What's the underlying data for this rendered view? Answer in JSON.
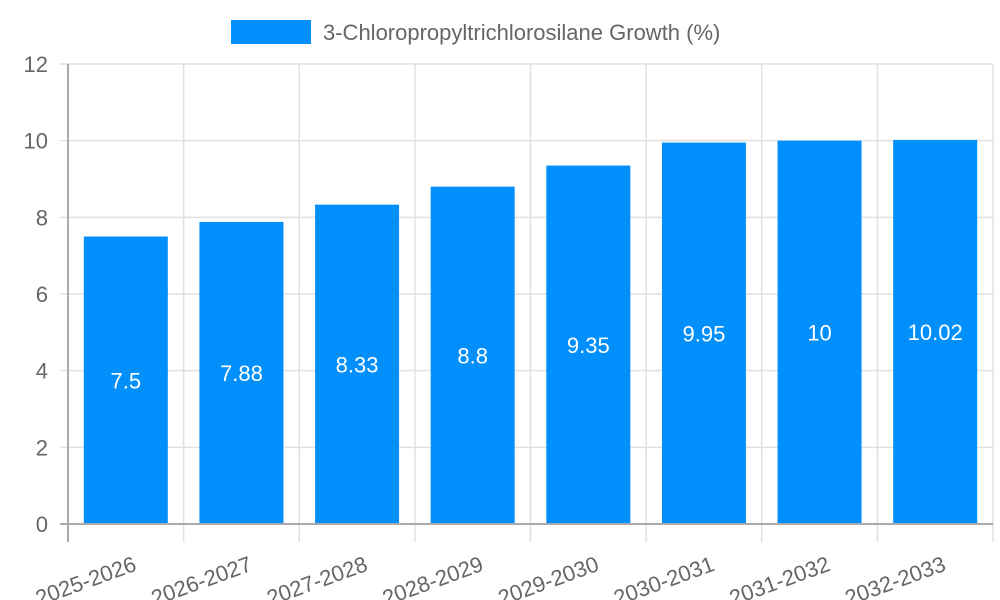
{
  "chart_data": {
    "type": "bar",
    "title": "",
    "legend": {
      "position": "top",
      "entries": [
        {
          "label": "3-Chloropropyltrichlorosilane Growth (%)",
          "color": "#008ffb"
        }
      ]
    },
    "categories": [
      "2025-2026",
      "2026-2027",
      "2027-2028",
      "2028-2029",
      "2029-2030",
      "2030-2031",
      "2031-2032",
      "2032-2033"
    ],
    "series": [
      {
        "name": "3-Chloropropyltrichlorosilane Growth (%)",
        "values": [
          7.5,
          7.88,
          8.33,
          8.8,
          9.35,
          9.95,
          10,
          10.02
        ],
        "color": "#008ffb"
      }
    ],
    "data_labels": [
      "7.5",
      "7.88",
      "8.33",
      "8.8",
      "9.35",
      "9.95",
      "10",
      "10.02"
    ],
    "xlabel": "",
    "ylabel": "",
    "ylim": [
      0,
      12
    ],
    "yticks": [
      0,
      2,
      4,
      6,
      8,
      10,
      12
    ],
    "grid": true,
    "x_tick_rotation": -20
  },
  "colors": {
    "bar": "#008ffb",
    "grid": "#e0e0e0",
    "axis": "#aaaaaa",
    "text": "#666666",
    "data_label": "#ffffff"
  }
}
